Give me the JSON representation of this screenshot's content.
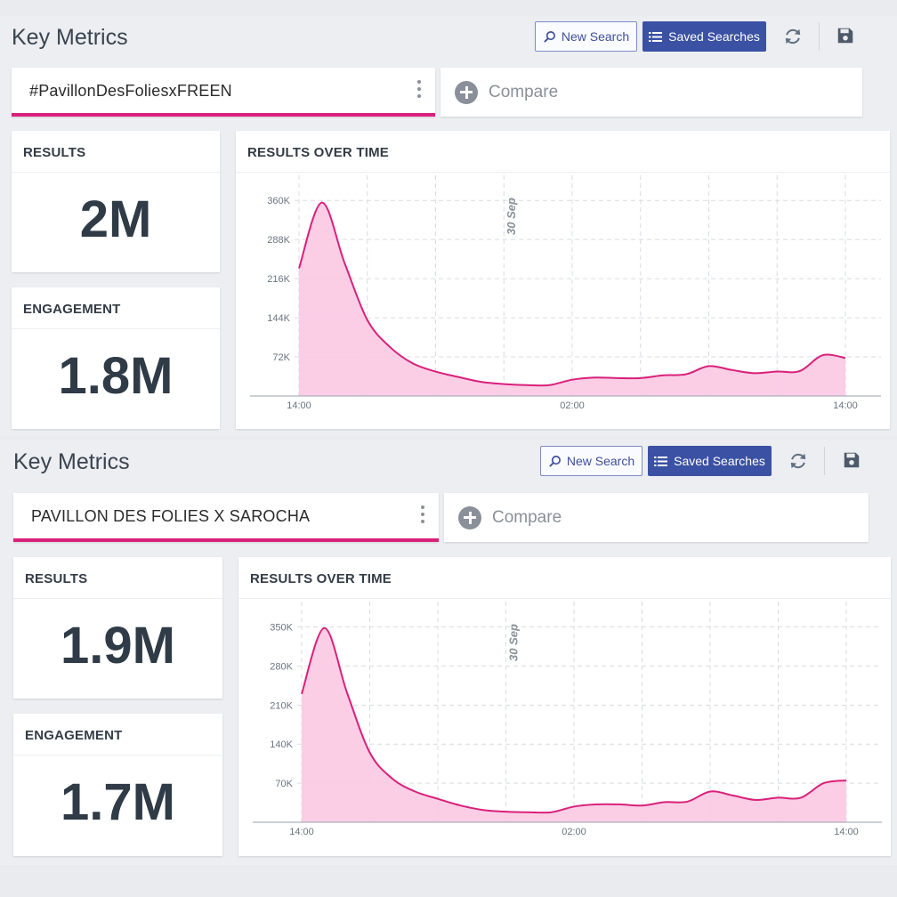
{
  "panels": [
    {
      "title": "Key Metrics",
      "new_search_label": "New Search",
      "saved_searches_label": "Saved Searches",
      "search_query": "#PavillonDesFoliesxFREEN",
      "compare_label": "Compare",
      "results_label": "RESULTS",
      "results_value": "2M",
      "engagement_label": "ENGAGEMENT",
      "engagement_value": "1.8M",
      "chart_title": "RESULTS OVER TIME",
      "accent_color": "#d9207a",
      "chart_data": {
        "type": "area",
        "title": "RESULTS OVER TIME",
        "x": [
          0,
          1,
          2,
          3,
          4,
          5,
          6,
          7,
          8,
          9,
          10,
          11,
          12,
          13,
          14,
          15,
          16,
          17,
          18,
          19,
          20,
          21,
          22,
          23,
          24
        ],
        "x_tick_labels": [
          "14:00",
          "02:00",
          "14:00"
        ],
        "x_tick_positions": [
          0,
          12,
          24
        ],
        "annotation": "30 Sep",
        "annotation_x": 9.5,
        "y_tick_labels": [
          "72K",
          "144K",
          "216K",
          "288K",
          "360K"
        ],
        "y_ticks": [
          72000,
          144000,
          216000,
          288000,
          360000
        ],
        "ylim": [
          0,
          380000
        ],
        "values": [
          235000,
          356000,
          245000,
          140000,
          90000,
          60000,
          45000,
          35000,
          26000,
          22000,
          20000,
          20000,
          30000,
          34000,
          33000,
          33000,
          38000,
          40000,
          55000,
          48000,
          42000,
          45000,
          46000,
          75000,
          70000
        ],
        "grid": true,
        "color": "#d9207a"
      }
    },
    {
      "title": "Key Metrics",
      "new_search_label": "New Search",
      "saved_searches_label": "Saved Searches",
      "search_query": "PAVILLON DES FOLIES X SAROCHA",
      "compare_label": "Compare",
      "results_label": "RESULTS",
      "results_value": "1.9M",
      "engagement_label": "ENGAGEMENT",
      "engagement_value": "1.7M",
      "chart_title": "RESULTS OVER TIME",
      "accent_color": "#d9207a",
      "chart_data": {
        "type": "area",
        "title": "RESULTS OVER TIME",
        "x": [
          0,
          1,
          2,
          3,
          4,
          5,
          6,
          7,
          8,
          9,
          10,
          11,
          12,
          13,
          14,
          15,
          16,
          17,
          18,
          19,
          20,
          21,
          22,
          23,
          24
        ],
        "x_tick_labels": [
          "14:00",
          "02:00",
          "14:00"
        ],
        "x_tick_positions": [
          0,
          12,
          24
        ],
        "annotation": "30 Sep",
        "annotation_x": 9.5,
        "y_tick_labels": [
          "70K",
          "140K",
          "210K",
          "280K",
          "350K"
        ],
        "y_ticks": [
          70000,
          140000,
          210000,
          280000,
          350000
        ],
        "ylim": [
          0,
          370000
        ],
        "values": [
          230000,
          348000,
          232000,
          125000,
          78000,
          55000,
          42000,
          30000,
          22000,
          19000,
          18000,
          18000,
          28000,
          32000,
          32000,
          30000,
          36000,
          37000,
          55000,
          48000,
          40000,
          44000,
          44000,
          70000,
          75000
        ],
        "grid": true,
        "color": "#d9207a"
      }
    }
  ]
}
